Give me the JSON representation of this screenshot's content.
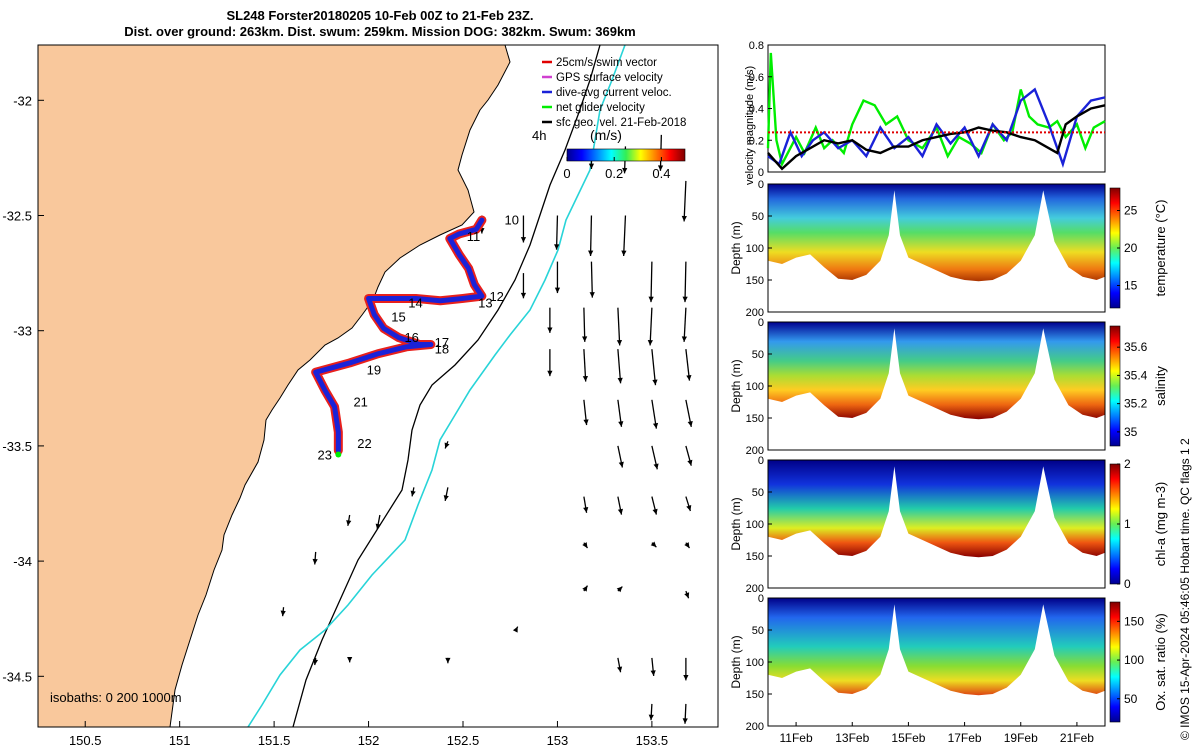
{
  "header": {
    "line1": "SL248 Forster20180205 10-Feb 00Z to 21-Feb 23Z.",
    "line2": "Dist. over ground: 263km. Dist. swum: 259km. Mission DOG: 382km. Swum: 369km"
  },
  "credit": "© IMOS 15-Apr-2024 05:46:05 Hobart time. QC flags 1  2",
  "colors": {
    "land": "#f9c89c",
    "track_red": "#e8201c",
    "track_blue": "#1a22d8",
    "isobath_cyan": "#28d4d8",
    "speed_green": "#00ee00",
    "geo_black": "#000000"
  },
  "chart_data": [
    {
      "type": "scatter",
      "name": "map",
      "xlim": [
        150.25,
        153.85
      ],
      "ylim": [
        -34.72,
        -31.76
      ],
      "xticks": [
        150.5,
        151,
        151.5,
        152,
        152.5,
        153,
        153.5
      ],
      "yticks": [
        -32,
        -32.5,
        -33,
        -33.5,
        -34,
        -34.5
      ],
      "legend": [
        "25cm/s swim vector",
        "GPS surface velocity",
        "dive-avg current veloc.",
        "net glider velocity",
        "sfc geo. vel. 21-Feb-2018"
      ],
      "legend_colors": [
        "#e00000",
        "#d040d0",
        "#1a22d8",
        "#00ee00",
        "#000000"
      ],
      "colorbar": {
        "label": "(m/s)",
        "ticks": [
          0,
          0.2,
          0.4
        ],
        "range": [
          0,
          0.5
        ],
        "side_label": "4h"
      },
      "isobaths_label": "isobaths: 0   200  1000m",
      "day_labels": [
        {
          "text": "10",
          "lon": 152.72,
          "lat": -32.54
        },
        {
          "text": "11",
          "lon": 152.52,
          "lat": -32.61
        },
        {
          "text": "12",
          "lon": 152.64,
          "lat": -32.87
        },
        {
          "text": "13",
          "lon": 152.58,
          "lat": -32.9
        },
        {
          "text": "14",
          "lon": 152.21,
          "lat": -32.9
        },
        {
          "text": "15",
          "lon": 152.12,
          "lat": -32.96
        },
        {
          "text": "16",
          "lon": 152.19,
          "lat": -33.05
        },
        {
          "text": "17",
          "lon": 152.35,
          "lat": -33.07
        },
        {
          "text": "18",
          "lon": 152.35,
          "lat": -33.1
        },
        {
          "text": "19",
          "lon": 151.99,
          "lat": -33.19
        },
        {
          "text": "21",
          "lon": 151.92,
          "lat": -33.33
        },
        {
          "text": "22",
          "lon": 151.94,
          "lat": -33.51
        },
        {
          "text": "23",
          "lon": 151.73,
          "lat": -33.56
        }
      ],
      "track": [
        [
          152.6,
          -32.52
        ],
        [
          152.57,
          -32.56
        ],
        [
          152.48,
          -32.58
        ],
        [
          152.43,
          -32.6
        ],
        [
          152.48,
          -32.67
        ],
        [
          152.53,
          -32.73
        ],
        [
          152.56,
          -32.8
        ],
        [
          152.6,
          -32.85
        ],
        [
          152.5,
          -32.86
        ],
        [
          152.38,
          -32.87
        ],
        [
          152.25,
          -32.86
        ],
        [
          152.0,
          -32.86
        ],
        [
          152.03,
          -32.93
        ],
        [
          152.08,
          -32.99
        ],
        [
          152.16,
          -33.03
        ],
        [
          152.27,
          -33.06
        ],
        [
          152.33,
          -33.06
        ],
        [
          152.2,
          -33.07
        ],
        [
          152.05,
          -33.1
        ],
        [
          151.9,
          -33.14
        ],
        [
          151.72,
          -33.18
        ],
        [
          151.77,
          -33.26
        ],
        [
          151.82,
          -33.33
        ],
        [
          151.84,
          -33.44
        ],
        [
          151.84,
          -33.52
        ]
      ],
      "current_arrows": [
        [
          153.55,
          -32.15,
          -0.01,
          -0.4
        ],
        [
          153.36,
          -32.2,
          -0.01,
          -0.3
        ],
        [
          153.18,
          -32.22,
          0.0,
          -0.2
        ],
        [
          153.68,
          -32.35,
          -0.02,
          -0.45
        ],
        [
          153.36,
          -32.5,
          -0.02,
          -0.45
        ],
        [
          153.18,
          -32.5,
          -0.01,
          -0.45
        ],
        [
          153.0,
          -32.5,
          -0.01,
          -0.38
        ],
        [
          152.82,
          -32.5,
          0.0,
          -0.3
        ],
        [
          153.68,
          -32.7,
          -0.01,
          -0.45
        ],
        [
          153.5,
          -32.7,
          -0.01,
          -0.45
        ],
        [
          153.18,
          -32.7,
          0.01,
          -0.4
        ],
        [
          153.0,
          -32.7,
          0.0,
          -0.35
        ],
        [
          152.82,
          -32.75,
          0.0,
          -0.28
        ],
        [
          153.68,
          -32.9,
          -0.02,
          -0.38
        ],
        [
          153.5,
          -32.9,
          -0.02,
          -0.42
        ],
        [
          153.32,
          -32.9,
          0.02,
          -0.42
        ],
        [
          153.14,
          -32.9,
          0.01,
          -0.38
        ],
        [
          152.96,
          -32.9,
          0.0,
          -0.28
        ],
        [
          153.68,
          -33.08,
          0.04,
          -0.35
        ],
        [
          153.5,
          -33.08,
          0.04,
          -0.4
        ],
        [
          153.32,
          -33.08,
          0.03,
          -0.38
        ],
        [
          153.14,
          -33.08,
          0.02,
          -0.36
        ],
        [
          152.96,
          -33.08,
          0.0,
          -0.3
        ],
        [
          153.68,
          -33.3,
          0.06,
          -0.3
        ],
        [
          153.5,
          -33.3,
          0.05,
          -0.32
        ],
        [
          153.32,
          -33.3,
          0.04,
          -0.3
        ],
        [
          153.14,
          -33.3,
          0.03,
          -0.28
        ],
        [
          153.68,
          -33.5,
          0.06,
          -0.22
        ],
        [
          153.5,
          -33.5,
          0.06,
          -0.26
        ],
        [
          153.32,
          -33.5,
          0.05,
          -0.24
        ],
        [
          153.68,
          -33.72,
          0.05,
          -0.16
        ],
        [
          153.5,
          -33.72,
          0.05,
          -0.2
        ],
        [
          153.32,
          -33.72,
          0.04,
          -0.2
        ],
        [
          153.14,
          -33.72,
          0.03,
          -0.18
        ],
        [
          153.68,
          -33.92,
          0.04,
          -0.06
        ],
        [
          153.5,
          -33.92,
          0.05,
          -0.05
        ],
        [
          153.14,
          -33.92,
          0.04,
          -0.06
        ],
        [
          153.68,
          -34.13,
          0.03,
          -0.08
        ],
        [
          153.32,
          -34.13,
          0.05,
          0.05
        ],
        [
          153.14,
          -34.13,
          0.04,
          0.06
        ],
        [
          152.6,
          -32.5,
          0.0,
          -0.2
        ],
        [
          152.42,
          -33.48,
          -0.03,
          -0.08
        ],
        [
          152.42,
          -33.68,
          -0.03,
          -0.15
        ],
        [
          152.24,
          -33.68,
          -0.02,
          -0.1
        ],
        [
          152.06,
          -33.8,
          -0.03,
          -0.16
        ],
        [
          151.9,
          -33.8,
          -0.02,
          -0.12
        ],
        [
          151.72,
          -33.96,
          -0.01,
          -0.14
        ],
        [
          151.55,
          -34.2,
          -0.01,
          -0.1
        ],
        [
          151.72,
          -34.42,
          -0.01,
          -0.08
        ],
        [
          151.9,
          -34.42,
          0.0,
          -0.05
        ],
        [
          152.42,
          -34.42,
          0.0,
          -0.06
        ],
        [
          153.32,
          -34.42,
          0.03,
          -0.16
        ],
        [
          153.5,
          -34.42,
          0.02,
          -0.2
        ],
        [
          153.68,
          -34.42,
          0.0,
          -0.25
        ],
        [
          153.68,
          -34.62,
          -0.01,
          -0.22
        ],
        [
          153.5,
          -34.62,
          -0.01,
          -0.18
        ],
        [
          152.78,
          -34.3,
          0.02,
          0.04
        ]
      ]
    },
    {
      "type": "line",
      "name": "velocity",
      "ylabel": "velocity magnitude (m/s)",
      "ylim": [
        0,
        0.8
      ],
      "yticks": [
        0,
        0.2,
        0.4,
        0.6,
        0.8
      ],
      "xlim": [
        10,
        22
      ],
      "series": [
        {
          "color": "#00ee00",
          "x": [
            10.0,
            10.1,
            10.3,
            10.5,
            11.0,
            11.3,
            11.7,
            12.0,
            12.3,
            12.7,
            13.0,
            13.4,
            13.8,
            14.2,
            14.6,
            15.0,
            15.5,
            16.0,
            16.4,
            16.8,
            17.2,
            17.6,
            18.0,
            18.4,
            18.7,
            19.0,
            19.3,
            19.6,
            20.0,
            20.3,
            20.6,
            21.0,
            21.3,
            21.6,
            22.0
          ],
          "values": [
            0.15,
            0.75,
            0.2,
            0.05,
            0.22,
            0.12,
            0.28,
            0.15,
            0.2,
            0.12,
            0.3,
            0.45,
            0.42,
            0.3,
            0.35,
            0.2,
            0.15,
            0.28,
            0.1,
            0.22,
            0.18,
            0.12,
            0.3,
            0.2,
            0.25,
            0.52,
            0.35,
            0.3,
            0.28,
            0.32,
            0.22,
            0.3,
            0.15,
            0.28,
            0.32
          ]
        },
        {
          "color": "#1a22d8",
          "x": [
            10.0,
            10.4,
            10.8,
            11.2,
            11.6,
            12.0,
            12.5,
            13.0,
            13.5,
            14.0,
            14.5,
            15.0,
            15.5,
            16.0,
            16.5,
            17.0,
            17.5,
            18.0,
            18.5,
            19.0,
            19.5,
            20.0,
            20.5,
            21.0,
            21.5,
            22.0
          ],
          "values": [
            0.1,
            0.05,
            0.25,
            0.1,
            0.2,
            0.25,
            0.15,
            0.2,
            0.1,
            0.28,
            0.15,
            0.22,
            0.1,
            0.3,
            0.18,
            0.28,
            0.1,
            0.3,
            0.2,
            0.45,
            0.52,
            0.3,
            0.05,
            0.35,
            0.45,
            0.47
          ]
        },
        {
          "color": "#000000",
          "x": [
            10.0,
            10.5,
            11.0,
            11.5,
            12.0,
            12.5,
            13.0,
            13.5,
            14.0,
            14.5,
            15.0,
            15.5,
            16.0,
            16.5,
            17.0,
            17.5,
            18.0,
            18.5,
            19.0,
            19.5,
            20.0,
            20.3,
            20.6,
            21.0,
            21.5,
            22.0
          ],
          "values": [
            0.12,
            0.02,
            0.1,
            0.15,
            0.2,
            0.18,
            0.2,
            0.14,
            0.12,
            0.16,
            0.16,
            0.2,
            0.22,
            0.24,
            0.25,
            0.28,
            0.26,
            0.25,
            0.22,
            0.2,
            0.15,
            0.12,
            0.3,
            0.35,
            0.4,
            0.42
          ]
        },
        {
          "color": "#e00000",
          "x": [
            10.0,
            22.0
          ],
          "values": [
            0.25,
            0.25
          ]
        }
      ]
    },
    {
      "type": "heatmap",
      "name": "temperature",
      "ylabel": "Depth (m)",
      "cbar_label": "temperature (°C)",
      "cbar_ticks": [
        15,
        20,
        25
      ],
      "cbar_range": [
        12,
        28
      ],
      "depth_ticks": [
        0,
        50,
        100,
        150,
        200
      ],
      "depth_lim": [
        0,
        200
      ]
    },
    {
      "type": "heatmap",
      "name": "salinity",
      "ylabel": "Depth (m)",
      "cbar_label": "salinity",
      "cbar_ticks": [
        35,
        35.2,
        35.4,
        35.6
      ],
      "cbar_range": [
        34.9,
        35.75
      ],
      "depth_ticks": [
        0,
        50,
        100,
        150,
        200
      ],
      "depth_lim": [
        0,
        200
      ]
    },
    {
      "type": "heatmap",
      "name": "chl-a",
      "ylabel": "Depth (m)",
      "cbar_label": "chl-a (mg m-3)",
      "cbar_ticks": [
        0,
        1,
        2
      ],
      "cbar_range": [
        0,
        2
      ],
      "depth_ticks": [
        0,
        50,
        100,
        150,
        200
      ],
      "depth_lim": [
        0,
        200
      ]
    },
    {
      "type": "heatmap",
      "name": "oxygen",
      "ylabel": "Depth (m)",
      "cbar_label": "Ox. sat. ratio (%)",
      "cbar_ticks": [
        50,
        100,
        150
      ],
      "cbar_range": [
        20,
        175
      ],
      "depth_ticks": [
        0,
        50,
        100,
        150,
        200
      ],
      "depth_lim": [
        0,
        200
      ],
      "xticks": [
        "11Feb",
        "13Feb",
        "15Feb",
        "17Feb",
        "19Feb",
        "21Feb"
      ],
      "xtick_days": [
        11,
        13,
        15,
        17,
        19,
        21
      ],
      "xlim": [
        10,
        22
      ],
      "seafloor": [
        [
          10.0,
          120
        ],
        [
          10.5,
          125
        ],
        [
          11.0,
          115
        ],
        [
          11.5,
          110
        ],
        [
          12.0,
          130
        ],
        [
          12.5,
          148
        ],
        [
          13.0,
          150
        ],
        [
          13.5,
          142
        ],
        [
          14.0,
          120
        ],
        [
          14.3,
          80
        ],
        [
          14.5,
          10
        ],
        [
          14.7,
          80
        ],
        [
          15.0,
          115
        ],
        [
          15.5,
          125
        ],
        [
          16.0,
          135
        ],
        [
          16.5,
          145
        ],
        [
          17.0,
          150
        ],
        [
          17.5,
          152
        ],
        [
          18.0,
          150
        ],
        [
          18.5,
          140
        ],
        [
          19.0,
          120
        ],
        [
          19.5,
          80
        ],
        [
          19.8,
          10
        ],
        [
          20.2,
          90
        ],
        [
          20.7,
          130
        ],
        [
          21.2,
          145
        ],
        [
          21.7,
          150
        ],
        [
          22.0,
          145
        ]
      ]
    }
  ]
}
